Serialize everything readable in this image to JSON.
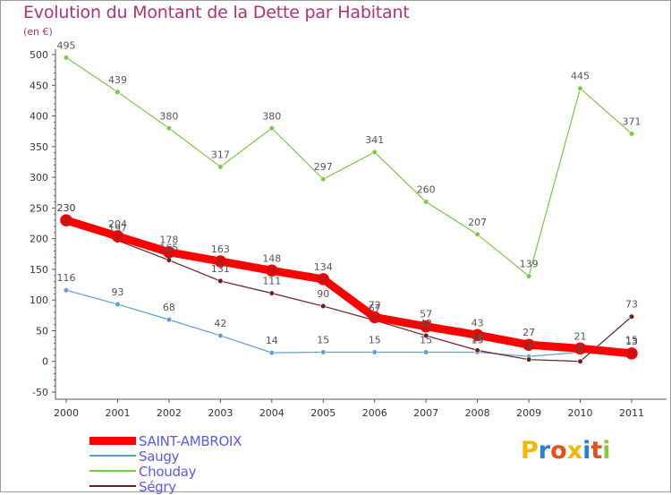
{
  "title": "Evolution du Montant de la Dette par Habitant",
  "unit": "(en €)",
  "logo": {
    "text": "Proxiti",
    "letters": [
      {
        "ch": "P",
        "color": "#f5b800"
      },
      {
        "ch": "r",
        "color": "#2a7fd4"
      },
      {
        "ch": "o",
        "color": "#e94e1b"
      },
      {
        "ch": "x",
        "color": "#f5b800"
      },
      {
        "ch": "i",
        "color": "#2a7fd4"
      },
      {
        "ch": "t",
        "color": "#e94e1b"
      },
      {
        "ch": "i",
        "color": "#8dc63f"
      }
    ]
  },
  "chart_data": {
    "type": "line",
    "title": "Evolution du Montant de la Dette par Habitant",
    "ylabel": "(en €)",
    "xlabel": "",
    "x": [
      "2000",
      "2001",
      "2002",
      "2003",
      "2004",
      "2005",
      "2006",
      "2007",
      "2008",
      "2009",
      "2010",
      "2011"
    ],
    "ylim": [
      -50,
      500
    ],
    "yticks": [
      -50,
      0,
      50,
      100,
      150,
      200,
      250,
      300,
      350,
      400,
      450,
      500
    ],
    "grid": false,
    "legend_position": "bottom-left",
    "series": [
      {
        "name": "SAINT-AMBROIX",
        "color": "#ff0000",
        "width": 9,
        "values": [
          230,
          204,
          178,
          163,
          148,
          134,
          72,
          57,
          43,
          27,
          21,
          13
        ],
        "labels": [
          "230",
          "204",
          "178",
          "163",
          "148",
          "134",
          "72",
          "57",
          "43",
          "27",
          "21",
          "13"
        ]
      },
      {
        "name": "Saugy",
        "color": "#5f9fd6",
        "width": 1.2,
        "values": [
          116,
          93,
          68,
          42,
          14,
          15,
          15,
          15,
          15,
          8,
          15,
          15
        ],
        "labels": [
          "116",
          "93",
          "68",
          "42",
          "14",
          "15",
          "15",
          "15",
          "15",
          "",
          "",
          "15"
        ]
      },
      {
        "name": "Chouday",
        "color": "#7ac943",
        "width": 1.2,
        "values": [
          495,
          439,
          380,
          317,
          380,
          297,
          341,
          260,
          207,
          139,
          445,
          371
        ],
        "labels": [
          "495",
          "439",
          "380",
          "317",
          "380",
          "297",
          "341",
          "260",
          "207",
          "139",
          "445",
          "371"
        ]
      },
      {
        "name": "Ségry",
        "color": "#6b1e1e",
        "width": 1.2,
        "values": [
          230,
          197,
          165,
          131,
          111,
          90,
          67,
          42,
          18,
          3,
          0,
          73
        ],
        "labels": [
          "230",
          "197",
          "165",
          "131",
          "111",
          "90",
          "67",
          "42",
          "18",
          "3",
          "0",
          "73"
        ]
      }
    ]
  }
}
